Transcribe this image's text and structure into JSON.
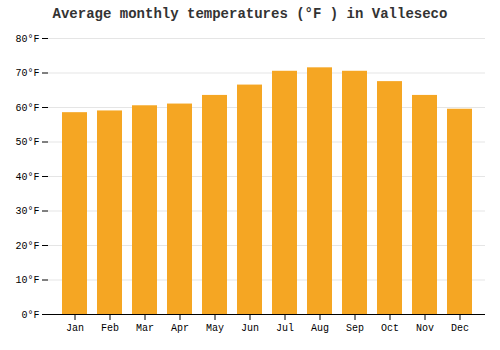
{
  "chart_data": {
    "type": "bar",
    "title": "Average monthly temperatures (°F ) in Valleseco",
    "categories": [
      "Jan",
      "Feb",
      "Mar",
      "Apr",
      "May",
      "Jun",
      "Jul",
      "Aug",
      "Sep",
      "Oct",
      "Nov",
      "Dec"
    ],
    "values": [
      58.5,
      59.0,
      60.5,
      61.0,
      63.5,
      66.5,
      70.5,
      71.5,
      70.5,
      67.5,
      63.5,
      59.5
    ],
    "color": "#F5A623",
    "ylim": [
      0,
      80
    ],
    "yticks": [
      {
        "value": 0,
        "label": "0°F"
      },
      {
        "value": 10,
        "label": "10°F"
      },
      {
        "value": 20,
        "label": "20°F"
      },
      {
        "value": 30,
        "label": "30°F"
      },
      {
        "value": 40,
        "label": "40°F"
      },
      {
        "value": 50,
        "label": "50°F"
      },
      {
        "value": 60,
        "label": "60°F"
      },
      {
        "value": 70,
        "label": "70°F"
      },
      {
        "value": 80,
        "label": "80°F"
      }
    ],
    "grid": true
  }
}
